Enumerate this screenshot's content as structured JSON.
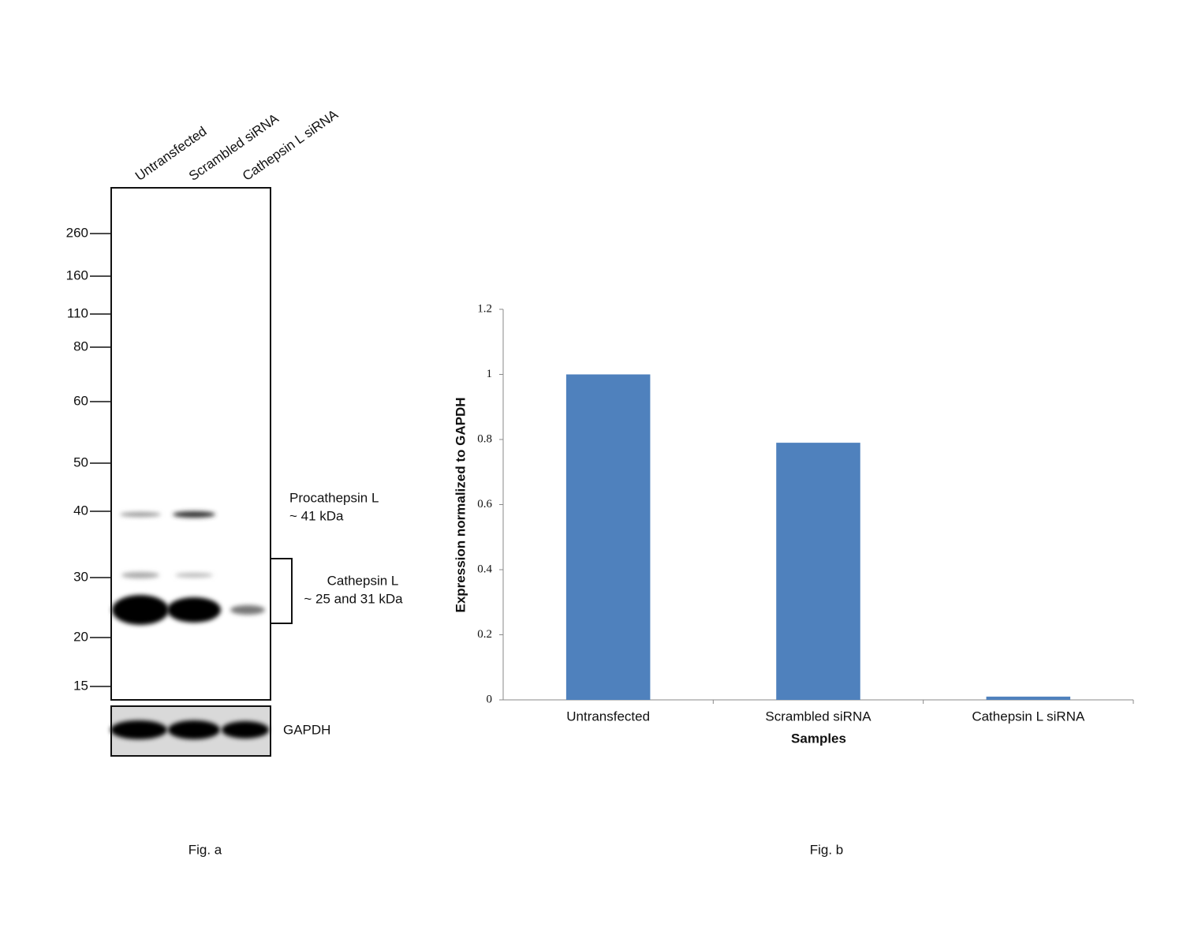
{
  "western_blot": {
    "lanes": [
      "Untransfected",
      "Scrambled siRNA",
      "Cathepsin L siRNA"
    ],
    "markers": [
      260,
      160,
      110,
      80,
      60,
      50,
      40,
      30,
      20,
      15
    ],
    "annotations": [
      [
        "Procathepsin L",
        "~ 41  kDa"
      ],
      [
        "Cathepsin L",
        "~ 25 and 31 kDa"
      ]
    ],
    "loading_control": "GAPDH",
    "caption": "Fig. a"
  },
  "chart_data": {
    "type": "bar",
    "caption": "Fig. b",
    "x_label": "Samples",
    "y_label": "Expression normalized to GAPDH",
    "categories": [
      "Untransfected",
      "Scrambled siRNA",
      "Cathepsin L siRNA"
    ],
    "values": [
      1,
      0.79,
      0.01
    ],
    "color": "#4f81bd",
    "ylim": [
      0,
      1.2
    ],
    "yticks": [
      0,
      0.2,
      0.4,
      0.6,
      0.8,
      1,
      1.2
    ],
    "grid": false
  }
}
